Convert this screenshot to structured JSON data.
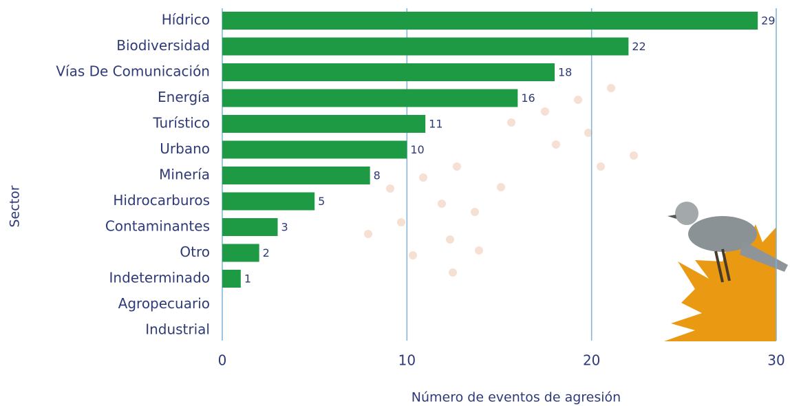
{
  "chart_data": {
    "type": "bar",
    "orientation": "horizontal",
    "categories": [
      "Hídrico",
      "Biodiversidad",
      "Vías De Comunicación",
      "Energía",
      "Turístico",
      "Urbano",
      "Minería",
      "Hidrocarburos",
      "Contaminantes",
      "Otro",
      "Indeterminado",
      "Agropecuario",
      "Industrial"
    ],
    "values": [
      29,
      22,
      18,
      16,
      11,
      10,
      8,
      5,
      3,
      2,
      1,
      null,
      null
    ],
    "color": "#1e9a44",
    "xlim": [
      0,
      30
    ],
    "xticks": [
      0,
      10,
      20,
      30
    ],
    "grid": true,
    "x_label": "Número de eventos de agresión",
    "y_label": "Sector"
  }
}
